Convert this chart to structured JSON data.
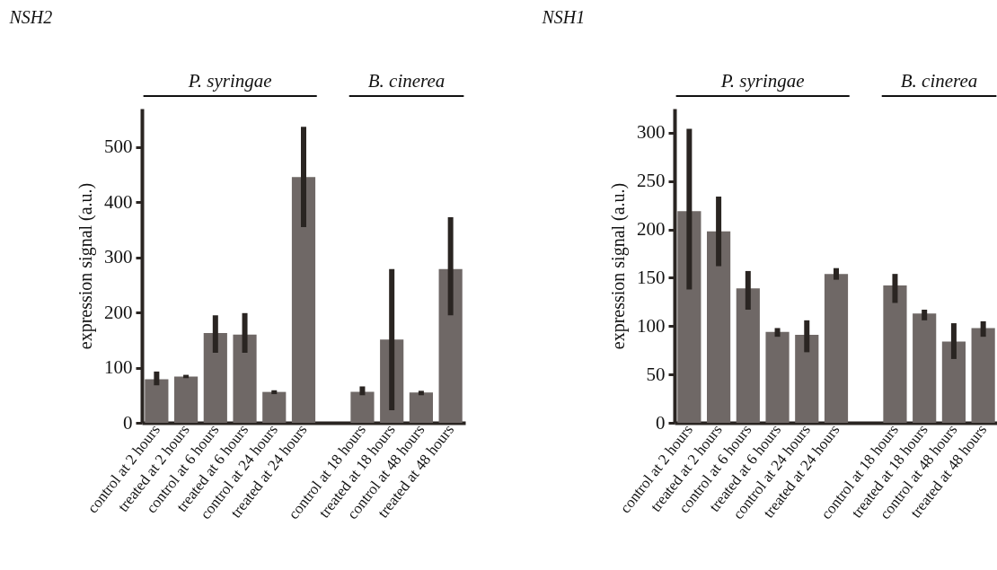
{
  "chart_data": [
    {
      "type": "bar",
      "title": "NSH2",
      "ylabel": "expression signal (a.u.)",
      "annotations": [
        "P. syringae",
        "B. cinerea"
      ],
      "categories": [
        "control at 2 hours",
        "treated at 2 hours",
        "control at 6  hours",
        "treated at 6 hours",
        "control at 24 hours",
        "treated at 24 hours",
        null,
        "control at 18 hours",
        "treated at 18 hours",
        "control at 48  hours",
        "treated at 48 hours"
      ],
      "values": [
        79,
        84,
        163,
        160,
        56,
        446,
        null,
        56,
        151,
        55,
        279
      ],
      "errors": [
        [
          68,
          93
        ],
        [
          81,
          87
        ],
        [
          127,
          195
        ],
        [
          127,
          199
        ],
        [
          52,
          59
        ],
        [
          355,
          537
        ],
        null,
        [
          50,
          66
        ],
        [
          23,
          279
        ],
        [
          50,
          58
        ],
        [
          195,
          373
        ]
      ],
      "color": "#6f6866",
      "ylim": [
        0,
        570
      ],
      "yticks": [
        0,
        100,
        200,
        300,
        400,
        500
      ],
      "grid": false
    },
    {
      "type": "bar",
      "title": "NSH1",
      "ylabel": "expression signal (a.u.)",
      "annotations": [
        "P. syringae",
        "B. cinerea"
      ],
      "categories": [
        "control at 2 hours",
        "treated at 2 hours",
        "control at 6  hours",
        "treated at 6 hours",
        "control at 24 hours",
        "treated at 24 hours",
        null,
        "control at 18 hours",
        "treated at 18 hours",
        "control at 48  hours",
        "treated at 48 hours"
      ],
      "values": [
        219,
        198,
        139,
        94,
        91,
        154,
        null,
        142,
        113,
        84,
        98
      ],
      "errors": [
        [
          138,
          304
        ],
        [
          162,
          234
        ],
        [
          117,
          157
        ],
        [
          89,
          98
        ],
        [
          73,
          106
        ],
        [
          148,
          160
        ],
        null,
        [
          124,
          154
        ],
        [
          106,
          117
        ],
        [
          66,
          103
        ],
        [
          89,
          105
        ]
      ],
      "color": "#6f6866",
      "ylim": [
        0,
        325
      ],
      "yticks": [
        0,
        50,
        100,
        150,
        200,
        250,
        300
      ],
      "grid": false
    }
  ]
}
